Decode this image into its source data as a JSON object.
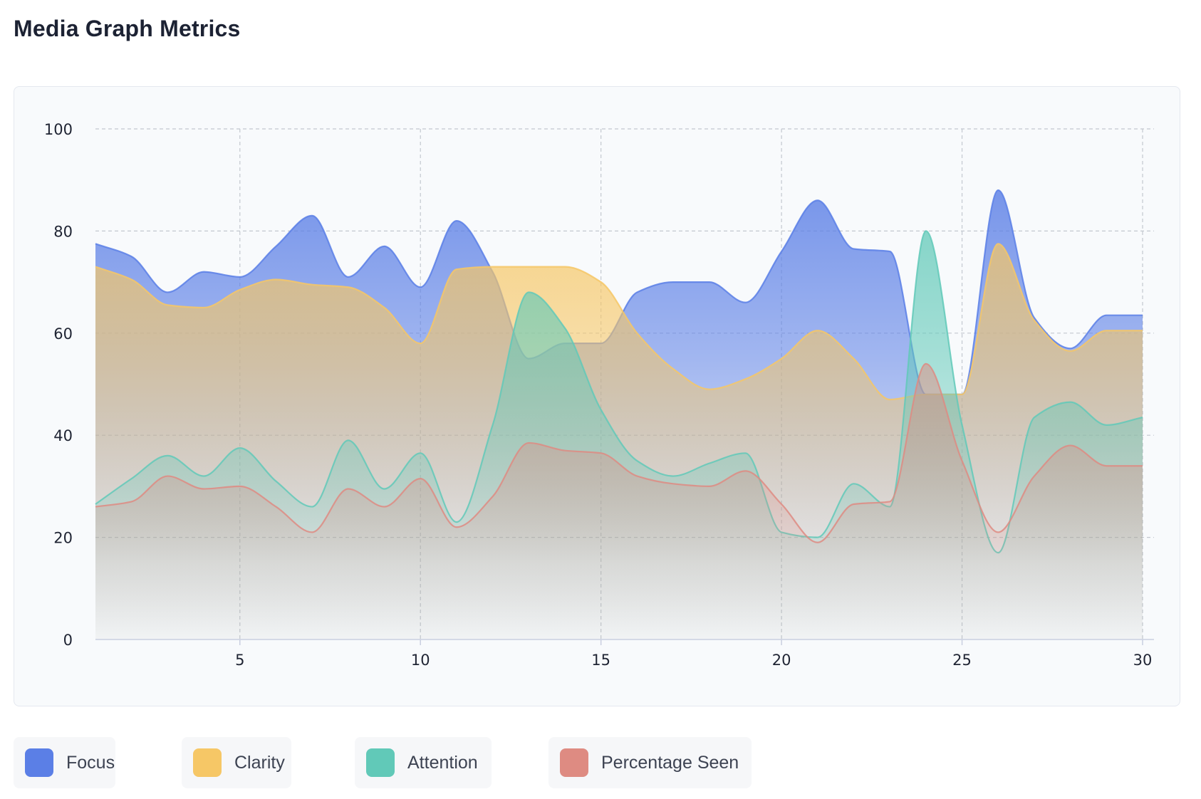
{
  "page": {
    "title": "Media Graph Metrics"
  },
  "legend": {
    "items": [
      {
        "key": "focus",
        "label": "Focus",
        "color": "#5b7fe6"
      },
      {
        "key": "clarity",
        "label": "Clarity",
        "color": "#f6c766"
      },
      {
        "key": "attention",
        "label": "Attention",
        "color": "#61c9b8"
      },
      {
        "key": "seen",
        "label": "Percentage Seen",
        "color": "#de8b82"
      }
    ]
  },
  "chart_data": {
    "type": "area",
    "title": "Media Graph Metrics",
    "xlabel": "",
    "ylabel": "",
    "xlim": [
      1,
      30
    ],
    "ylim": [
      0,
      100
    ],
    "xticks": [
      5,
      10,
      15,
      20,
      25,
      30
    ],
    "yticks": [
      0,
      20,
      40,
      60,
      80,
      100
    ],
    "grid": true,
    "legend_position": "bottom",
    "x": [
      1,
      2,
      3,
      4,
      5,
      6,
      7,
      8,
      9,
      10,
      11,
      12,
      13,
      14,
      15,
      16,
      17,
      18,
      19,
      20,
      21,
      22,
      23,
      24,
      25,
      26,
      27,
      28,
      29,
      30
    ],
    "series": [
      {
        "name": "Focus",
        "color": "#5b7fe6",
        "values": [
          77.5,
          75,
          68,
          72,
          71,
          77,
          83,
          71,
          77,
          69,
          82,
          72,
          55,
          58,
          58,
          68,
          70,
          70,
          66,
          76,
          86,
          76.5,
          76,
          48,
          48,
          88,
          63,
          57,
          63.5,
          63.5
        ]
      },
      {
        "name": "Clarity",
        "color": "#f6c766",
        "values": [
          73,
          70.5,
          65.5,
          65,
          68.5,
          70.5,
          69.5,
          69,
          65,
          58,
          72.5,
          73,
          73,
          73,
          70,
          60,
          53,
          49,
          51,
          55,
          60.5,
          55,
          47,
          48,
          48,
          77.5,
          62.5,
          56.5,
          60.5,
          60.5
        ]
      },
      {
        "name": "Attention",
        "color": "#61c9b8",
        "values": [
          26.5,
          31.5,
          36,
          32,
          37.5,
          31,
          26,
          39,
          29.5,
          36.5,
          23,
          42,
          68,
          61,
          45,
          35,
          32,
          34.5,
          36.5,
          21,
          20,
          30.5,
          26,
          80,
          42,
          17,
          43.5,
          46.5,
          42,
          43.5
        ]
      },
      {
        "name": "Percentage Seen",
        "color": "#de8b82",
        "values": [
          26,
          27,
          32,
          29.5,
          30,
          26,
          21,
          29.5,
          26,
          31.5,
          22,
          28,
          38.5,
          37,
          36.5,
          32,
          30.5,
          30,
          33,
          26.5,
          19,
          26.5,
          27,
          54,
          35,
          21,
          32,
          38,
          34,
          34
        ]
      }
    ]
  }
}
